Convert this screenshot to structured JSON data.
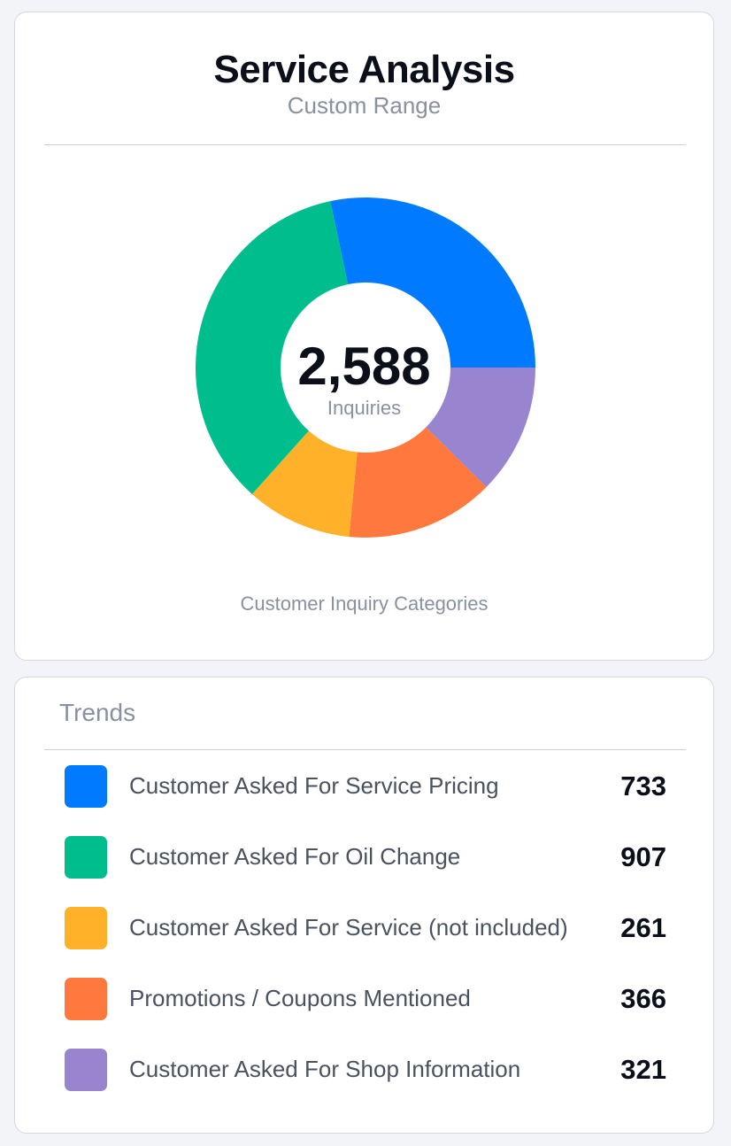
{
  "header": {
    "title": "Service Analysis",
    "subtitle": "Custom Range"
  },
  "chart_data": {
    "type": "pie",
    "variant": "donut",
    "total_label": "2,588",
    "center_label": "Inquiries",
    "caption": "Customer Inquiry Categories",
    "categories": [
      "Customer Asked For Service Pricing",
      "Customer Asked For Oil Change",
      "Customer Asked For Service (not included)",
      "Promotions / Coupons Mentioned",
      "Customer Asked For Shop Information"
    ],
    "pie_order": [
      "Customer Asked For Service Pricing",
      "Customer Asked For Shop Information",
      "Promotions / Coupons Mentioned",
      "Customer Asked For Service (not included)",
      "Customer Asked For Oil Change"
    ],
    "values": [
      733,
      907,
      261,
      366,
      321
    ],
    "colors": [
      "#007bff",
      "#00bd8e",
      "#ffb129",
      "#ff783d",
      "#9985cf"
    ]
  },
  "trends": {
    "title": "Trends",
    "items": [
      {
        "label": "Customer Asked For Service Pricing",
        "value": "733",
        "color": "#007bff"
      },
      {
        "label": "Customer Asked For Oil Change",
        "value": "907",
        "color": "#00bd8e"
      },
      {
        "label": "Customer Asked For Service (not included)",
        "value": "261",
        "color": "#ffb129"
      },
      {
        "label": "Promotions / Coupons Mentioned",
        "value": "366",
        "color": "#ff783d"
      },
      {
        "label": "Customer Asked For Shop Information",
        "value": "321",
        "color": "#9985cf"
      }
    ]
  }
}
